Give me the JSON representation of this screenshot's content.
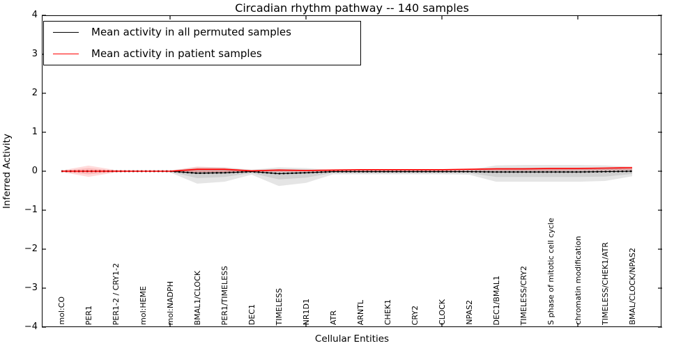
{
  "chart_data": {
    "type": "line",
    "title": "Circadian rhythm pathway -- 140 samples",
    "xlabel": "Cellular Entities",
    "ylabel": "Inferred Activity",
    "ylim": [
      -4,
      4
    ],
    "yticks": [
      4,
      3,
      2,
      1,
      0,
      -1,
      -2,
      -3,
      -4
    ],
    "xtick_category_indices": [
      4,
      9,
      14,
      19
    ],
    "grid": false,
    "legend_position": "upper left",
    "categories": [
      "mol:CO",
      "PER1",
      "PER1-2 / CRY1-2",
      "mol:HEME",
      "mol:NADPH",
      "BMAL1/CLOCK",
      "PER1/TIMELESS",
      "DEC1",
      "TIMELESS",
      "NR1D1",
      "ATR",
      "ARNTL",
      "CHEK1",
      "CRY2",
      "CLOCK",
      "NPAS2",
      "DEC1/BMAL1",
      "TIMELESS/CRY2",
      "S phase of mitotic cell cycle",
      "chromatin modification",
      "TIMELESS/CHEK1/ATR",
      "BMAL/CLOCK/NPAS2"
    ],
    "series": [
      {
        "name": "Mean activity in all permuted samples",
        "color": "#000000",
        "values": [
          0,
          0,
          0,
          0,
          0,
          -0.05,
          -0.04,
          -0.01,
          -0.06,
          -0.04,
          -0.01,
          -0.01,
          -0.01,
          -0.01,
          -0.01,
          -0.01,
          -0.02,
          -0.02,
          -0.02,
          -0.02,
          -0.01,
          0
        ]
      },
      {
        "name": "Mean activity in patient samples",
        "color": "#ff0000",
        "values": [
          0,
          0,
          0,
          0,
          0,
          0.05,
          0.05,
          0.01,
          0.03,
          0.02,
          0.03,
          0.04,
          0.04,
          0.04,
          0.04,
          0.05,
          0.06,
          0.06,
          0.07,
          0.07,
          0.08,
          0.09
        ]
      }
    ],
    "bands": [
      {
        "name": "permuted-envelope",
        "color": "#888888",
        "opacity": 0.22,
        "upper": [
          0,
          0,
          0,
          0,
          0.02,
          0.1,
          0.1,
          0.04,
          0.1,
          0.08,
          0.03,
          0.03,
          0.03,
          0.03,
          0.03,
          0.04,
          0.15,
          0.16,
          0.16,
          0.16,
          0.15,
          0.11
        ],
        "lower": [
          0,
          0,
          0,
          0,
          -0.03,
          -0.32,
          -0.27,
          -0.09,
          -0.38,
          -0.3,
          -0.08,
          -0.08,
          -0.08,
          -0.08,
          -0.08,
          -0.09,
          -0.27,
          -0.27,
          -0.27,
          -0.27,
          -0.25,
          -0.13
        ]
      },
      {
        "name": "patient-envelope",
        "color": "#ff0000",
        "opacity": 0.14,
        "upper": [
          0.02,
          0.145,
          0.03,
          0.01,
          0.01,
          0.12,
          0.09,
          0.02,
          0.05,
          0.03,
          0.04,
          0.05,
          0.05,
          0.05,
          0.05,
          0.06,
          0.08,
          0.08,
          0.09,
          0.09,
          0.1,
          0.12
        ],
        "lower": [
          -0.02,
          -0.145,
          -0.03,
          -0.01,
          -0.01,
          -0.03,
          -0.03,
          -0.01,
          -0.02,
          -0.01,
          0.0,
          0.01,
          0.01,
          0.01,
          0.01,
          0.02,
          0.02,
          0.02,
          0.02,
          0.03,
          0.03,
          0.04
        ]
      }
    ]
  }
}
